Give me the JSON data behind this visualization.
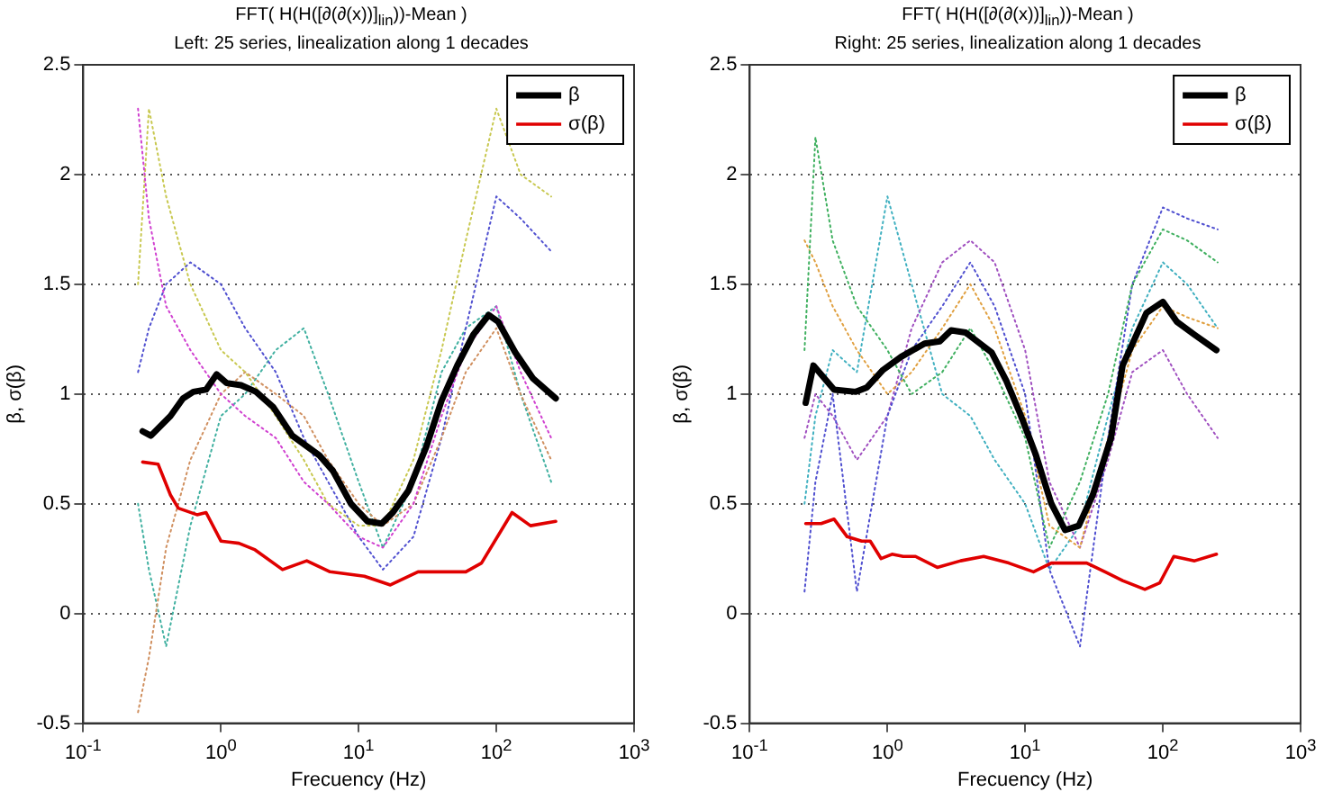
{
  "chart_data": [
    {
      "type": "line",
      "title": "FFT( H(H([∂(∂(x))]$_{lin}$))-Mean )",
      "subtitle": "Left: 25 series, linealization along 1 decades",
      "xlabel": "Frecuency (Hz)",
      "ylabel": "β, σ(β)",
      "log": "x",
      "xlim": [
        0.1,
        1000
      ],
      "ylim": [
        -0.5,
        2.5
      ],
      "xticks": [
        {
          "value": 0.1,
          "label": "10$^{-1}$"
        },
        {
          "value": 1,
          "label": "10$^{0}$"
        },
        {
          "value": 10,
          "label": "10$^{1}$"
        },
        {
          "value": 100,
          "label": "10$^{2}$"
        },
        {
          "value": 1000,
          "label": "10$^{3}$"
        }
      ],
      "yticks": [
        -0.5,
        0,
        0.5,
        1,
        1.5,
        2,
        2.5
      ],
      "grid": "y",
      "legend": "top right",
      "marker": "none",
      "series": [
        {
          "color": "#d040d0",
          "line_style": "dotted",
          "x": [
            0.25,
            0.3,
            0.4,
            0.6,
            1,
            1.5,
            2.5,
            4,
            6,
            10,
            15,
            25,
            40,
            60,
            100,
            150,
            250
          ],
          "values": [
            2.3,
            1.8,
            1.4,
            1.2,
            1.0,
            0.9,
            0.8,
            0.6,
            0.5,
            0.35,
            0.3,
            0.5,
            0.9,
            1.2,
            1.4,
            1.1,
            0.8
          ]
        },
        {
          "color": "#c8c850",
          "line_style": "dotted",
          "x": [
            0.25,
            0.3,
            0.4,
            0.6,
            1,
            1.5,
            2.5,
            4,
            6,
            10,
            15,
            25,
            40,
            60,
            100,
            150,
            250
          ],
          "values": [
            1.5,
            2.3,
            1.9,
            1.5,
            1.2,
            1.1,
            0.9,
            0.7,
            0.5,
            0.4,
            0.4,
            0.7,
            1.2,
            1.7,
            2.3,
            2.0,
            1.9
          ]
        },
        {
          "color": "#d09060",
          "line_style": "dotted",
          "x": [
            0.25,
            0.3,
            0.4,
            0.6,
            1,
            1.5,
            2.5,
            4,
            6,
            10,
            15,
            25,
            40,
            60,
            100,
            150,
            250
          ],
          "values": [
            -0.45,
            -0.2,
            0.3,
            0.7,
            1.0,
            1.1,
            1.0,
            0.9,
            0.7,
            0.5,
            0.4,
            0.5,
            0.8,
            1.1,
            1.3,
            1.0,
            0.7
          ]
        },
        {
          "color": "#5050d0",
          "line_style": "dotted",
          "x": [
            0.25,
            0.3,
            0.4,
            0.6,
            1,
            1.5,
            2.5,
            4,
            6,
            10,
            15,
            25,
            40,
            60,
            100,
            150,
            250
          ],
          "values": [
            1.1,
            1.3,
            1.5,
            1.6,
            1.5,
            1.3,
            1.1,
            0.8,
            0.6,
            0.35,
            0.2,
            0.35,
            0.8,
            1.3,
            1.9,
            1.8,
            1.65
          ]
        },
        {
          "color": "#40b0a0",
          "line_style": "dotted",
          "x": [
            0.25,
            0.3,
            0.4,
            0.6,
            1,
            1.5,
            2.5,
            4,
            6,
            10,
            15,
            25,
            40,
            60,
            100,
            150,
            250
          ],
          "values": [
            0.5,
            0.2,
            -0.15,
            0.4,
            0.9,
            1.0,
            1.2,
            1.3,
            1.0,
            0.6,
            0.3,
            0.6,
            1.1,
            1.3,
            1.4,
            1.0,
            0.6
          ]
        },
        {
          "name": "β",
          "color": "#000000",
          "line_style": "solid",
          "x": [
            0.27,
            0.31,
            0.43,
            0.53,
            0.63,
            0.78,
            0.93,
            1.1,
            1.4,
            1.8,
            2.4,
            3.3,
            5.2,
            6.5,
            8.8,
            11.6,
            14.7,
            17.7,
            23,
            31,
            40,
            52,
            68,
            88,
            103,
            137,
            185,
            270
          ],
          "values": [
            0.83,
            0.81,
            0.9,
            0.98,
            1.01,
            1.02,
            1.09,
            1.05,
            1.04,
            1.01,
            0.94,
            0.81,
            0.72,
            0.65,
            0.5,
            0.42,
            0.41,
            0.46,
            0.56,
            0.76,
            0.97,
            1.13,
            1.27,
            1.36,
            1.33,
            1.19,
            1.07,
            0.98
          ]
        },
        {
          "name": "σ(β)",
          "color": "#e00000",
          "line_style": "solid",
          "x": [
            0.27,
            0.35,
            0.43,
            0.49,
            0.67,
            0.78,
            1.0,
            1.35,
            1.77,
            2.8,
            4.2,
            6.2,
            11,
            17,
            27,
            44,
            60,
            78,
            130,
            177,
            270
          ],
          "values": [
            0.69,
            0.68,
            0.54,
            0.48,
            0.45,
            0.46,
            0.33,
            0.32,
            0.29,
            0.2,
            0.24,
            0.19,
            0.17,
            0.13,
            0.19,
            0.19,
            0.19,
            0.23,
            0.46,
            0.4,
            0.42
          ]
        }
      ]
    },
    {
      "type": "line",
      "title": "FFT( H(H([∂(∂(x))]$_{lin}$))-Mean )",
      "subtitle": "Right: 25 series, linealization along 1 decades",
      "xlabel": "Frecuency (Hz)",
      "ylabel": "β, σ(β)",
      "log": "x",
      "xlim": [
        0.1,
        1000
      ],
      "ylim": [
        -0.5,
        2.5
      ],
      "xticks": [
        {
          "value": 0.1,
          "label": "10$^{-1}$"
        },
        {
          "value": 1,
          "label": "10$^{0}$"
        },
        {
          "value": 10,
          "label": "10$^{1}$"
        },
        {
          "value": 100,
          "label": "10$^{2}$"
        },
        {
          "value": 1000,
          "label": "10$^{3}$"
        }
      ],
      "yticks": [
        -0.5,
        0,
        0.5,
        1,
        1.5,
        2,
        2.5
      ],
      "grid": "y",
      "legend": "top right",
      "marker": "none",
      "series": [
        {
          "color": "#40b060",
          "line_style": "dotted",
          "x": [
            0.25,
            0.3,
            0.4,
            0.6,
            1,
            1.5,
            2.5,
            4,
            6,
            10,
            15,
            25,
            40,
            60,
            100,
            150,
            250
          ],
          "values": [
            1.2,
            2.17,
            1.7,
            1.4,
            1.2,
            1.0,
            1.1,
            1.3,
            1.1,
            0.8,
            0.3,
            0.6,
            1.0,
            1.5,
            1.75,
            1.7,
            1.6
          ]
        },
        {
          "color": "#5050d0",
          "line_style": "dotted",
          "x": [
            0.25,
            0.3,
            0.4,
            0.6,
            1,
            1.5,
            2.5,
            4,
            6,
            10,
            15,
            25,
            40,
            60,
            100,
            150,
            250
          ],
          "values": [
            0.1,
            0.6,
            1.0,
            0.1,
            0.9,
            1.2,
            1.4,
            1.6,
            1.4,
            1.0,
            0.2,
            -0.15,
            0.8,
            1.5,
            1.85,
            1.8,
            1.75
          ]
        },
        {
          "color": "#e0a040",
          "line_style": "dotted",
          "x": [
            0.25,
            0.3,
            0.4,
            0.6,
            1,
            1.5,
            2.5,
            4,
            6,
            10,
            15,
            25,
            40,
            60,
            100,
            150,
            250
          ],
          "values": [
            1.7,
            1.6,
            1.4,
            1.2,
            1.0,
            1.1,
            1.3,
            1.5,
            1.3,
            0.9,
            0.4,
            0.3,
            0.8,
            1.2,
            1.4,
            1.35,
            1.3
          ]
        },
        {
          "color": "#a050c0",
          "line_style": "dotted",
          "x": [
            0.25,
            0.3,
            0.4,
            0.6,
            1,
            1.5,
            2.5,
            4,
            6,
            10,
            15,
            25,
            40,
            60,
            100,
            150,
            250
          ],
          "values": [
            0.8,
            1.0,
            0.9,
            0.7,
            0.9,
            1.3,
            1.6,
            1.7,
            1.6,
            1.2,
            0.6,
            0.3,
            0.7,
            1.1,
            1.2,
            1.0,
            0.8
          ]
        },
        {
          "color": "#40b0c0",
          "line_style": "dotted",
          "x": [
            0.25,
            0.3,
            0.4,
            0.6,
            1,
            1.5,
            2.5,
            4,
            6,
            10,
            15,
            25,
            40,
            60,
            100,
            150,
            250
          ],
          "values": [
            0.5,
            0.9,
            1.2,
            1.1,
            1.9,
            1.5,
            1.0,
            0.9,
            0.7,
            0.5,
            0.2,
            0.4,
            0.9,
            1.3,
            1.6,
            1.5,
            1.3
          ]
        },
        {
          "name": "β",
          "color": "#000000",
          "line_style": "solid",
          "x": [
            0.255,
            0.29,
            0.41,
            0.59,
            0.71,
            0.93,
            1.26,
            1.86,
            2.4,
            2.9,
            3.7,
            5.7,
            7.3,
            9.2,
            12,
            15.5,
            19.5,
            24.5,
            31,
            42,
            51,
            76,
            100,
            126,
            170,
            245
          ],
          "values": [
            0.96,
            1.13,
            1.02,
            1.01,
            1.03,
            1.11,
            1.17,
            1.23,
            1.24,
            1.29,
            1.28,
            1.19,
            1.06,
            0.91,
            0.72,
            0.5,
            0.38,
            0.4,
            0.54,
            0.8,
            1.13,
            1.37,
            1.42,
            1.33,
            1.27,
            1.2
          ]
        },
        {
          "name": "σ(β)",
          "color": "#e00000",
          "line_style": "solid",
          "x": [
            0.255,
            0.33,
            0.41,
            0.51,
            0.65,
            0.75,
            0.9,
            1.08,
            1.3,
            1.6,
            2.3,
            3.4,
            5.0,
            7.6,
            11.5,
            15.5,
            28,
            38,
            51,
            74,
            95,
            120,
            170,
            245
          ],
          "values": [
            0.41,
            0.41,
            0.43,
            0.35,
            0.33,
            0.33,
            0.25,
            0.27,
            0.26,
            0.26,
            0.21,
            0.24,
            0.26,
            0.23,
            0.19,
            0.23,
            0.23,
            0.19,
            0.15,
            0.11,
            0.14,
            0.26,
            0.24,
            0.27
          ]
        }
      ]
    }
  ]
}
